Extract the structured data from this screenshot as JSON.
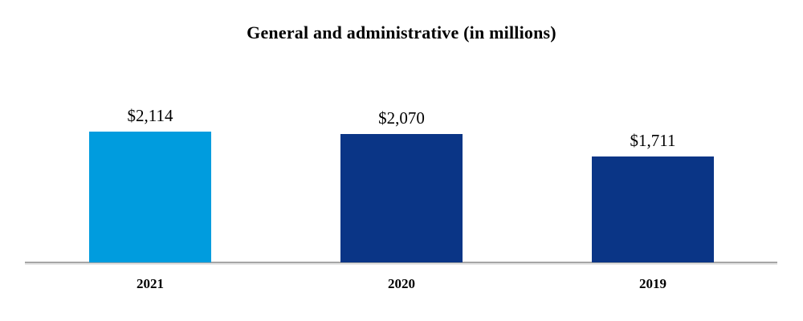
{
  "chart_data": {
    "type": "bar",
    "title": "General and administrative (in millions)",
    "categories": [
      "2021",
      "2020",
      "2019"
    ],
    "values": [
      2114,
      2070,
      1711
    ],
    "value_labels": [
      "$2,114",
      "$2,070",
      "$1,711"
    ],
    "bar_colors": [
      "#009CDE",
      "#0A3586",
      "#0A3586"
    ],
    "xlabel": "",
    "ylabel": "",
    "ylim": [
      0,
      2114
    ],
    "grid": false,
    "legend": false,
    "axis_line_color": "#A6A6A6",
    "background_color": "#FFFFFF",
    "text_color": "#000000"
  }
}
